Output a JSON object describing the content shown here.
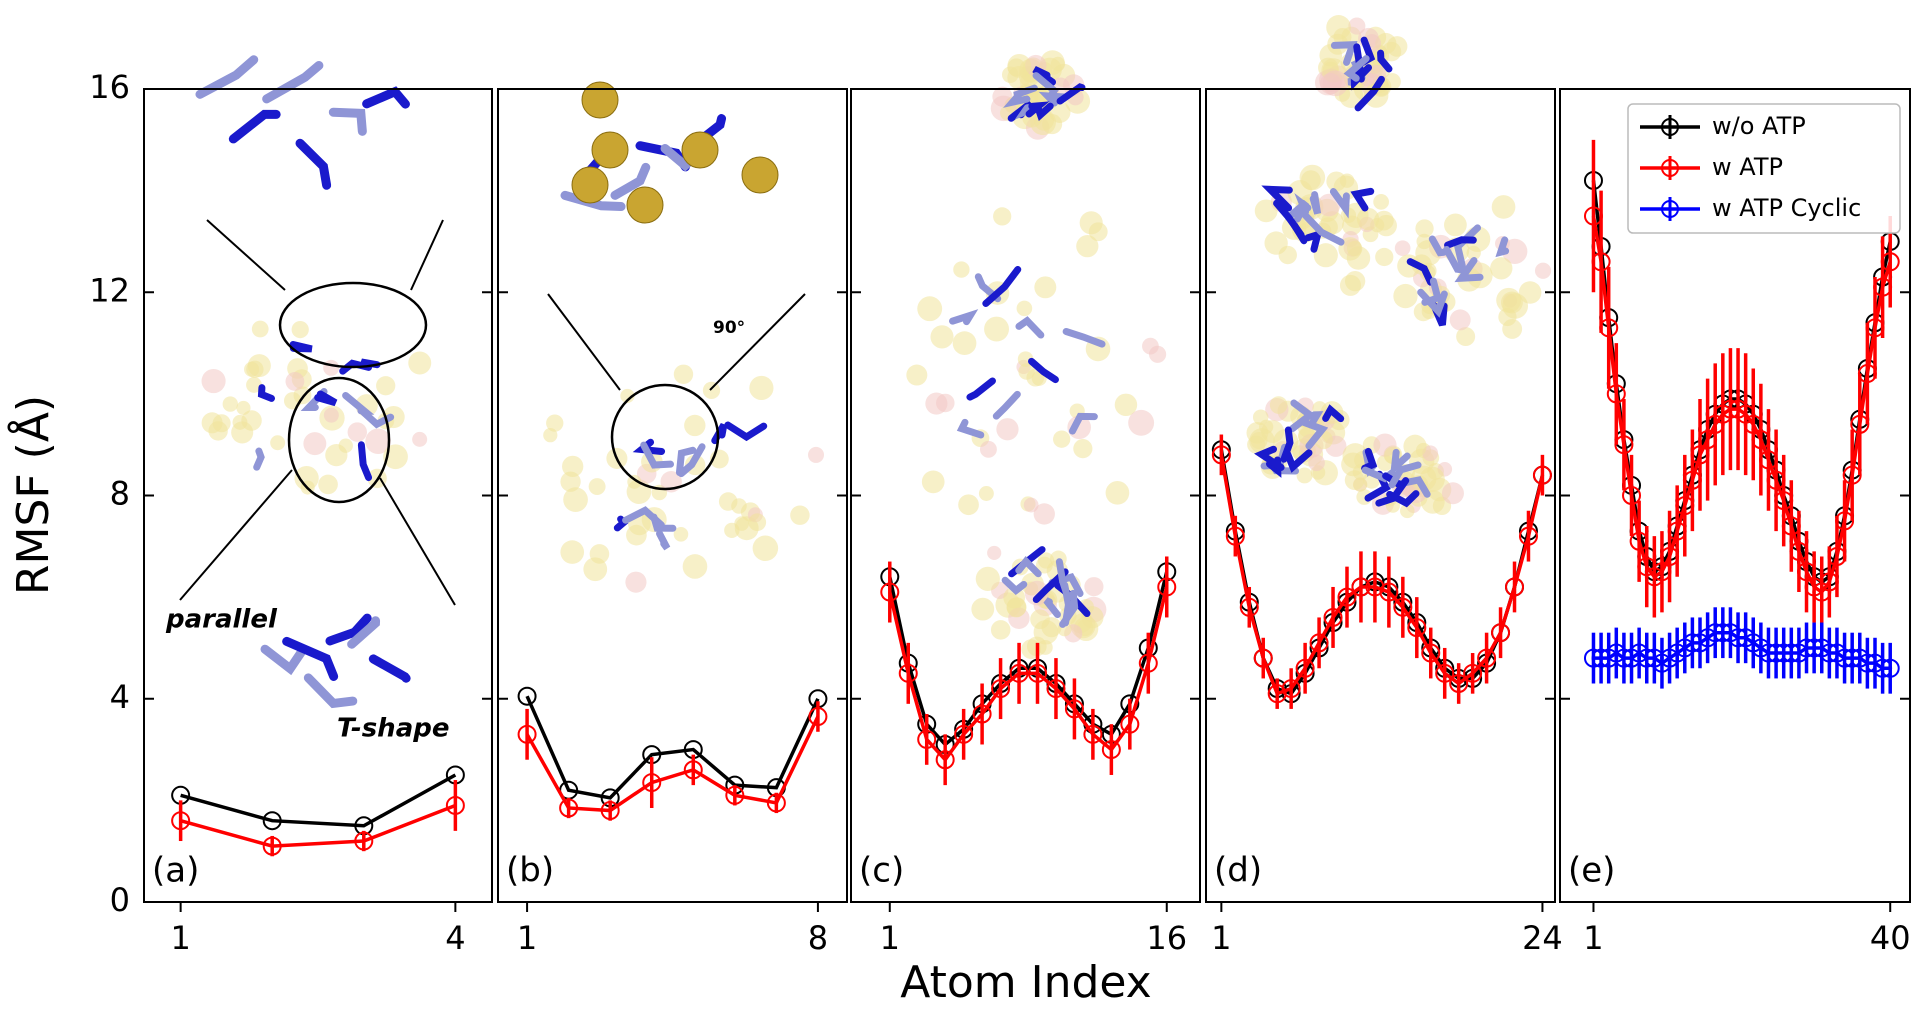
{
  "ylabel": "RMSF (Å)",
  "xlabel": "Atom Index",
  "chart_data": [
    {
      "type": "line",
      "label": "(a)",
      "xlim": [
        0.6,
        4.4
      ],
      "xticks": [
        1,
        4
      ],
      "ylim": [
        0,
        16
      ],
      "yticks": [
        0,
        4,
        8,
        12,
        16
      ],
      "annotations": [
        "parallel",
        "T-shape"
      ],
      "series": [
        {
          "color": "#000000",
          "values": [
            2.1,
            1.6,
            1.5,
            2.5
          ]
        },
        {
          "color": "#ff0000",
          "values": [
            1.6,
            1.1,
            1.2,
            1.9
          ],
          "errors": [
            0.4,
            0.2,
            0.2,
            0.5
          ]
        }
      ]
    },
    {
      "type": "line",
      "label": "(b)",
      "xlim": [
        0.3,
        8.7
      ],
      "xticks": [
        1,
        8
      ],
      "ylim": [
        0,
        16
      ],
      "yticks": [
        0,
        4,
        8,
        12,
        16
      ],
      "annotations": [
        "90°"
      ],
      "series": [
        {
          "color": "#000000",
          "values": [
            4.05,
            2.2,
            2.05,
            2.9,
            3.0,
            2.3,
            2.25,
            4.0
          ]
        },
        {
          "color": "#ff0000",
          "values": [
            3.3,
            1.85,
            1.8,
            2.35,
            2.6,
            2.1,
            1.95,
            3.65
          ],
          "errors": [
            0.5,
            0.2,
            0.2,
            0.5,
            0.3,
            0.2,
            0.2,
            0.3
          ]
        }
      ]
    },
    {
      "type": "line",
      "label": "(c)",
      "xlim": [
        -1.1,
        17.8
      ],
      "xticks": [
        1,
        16
      ],
      "ylim": [
        0,
        16
      ],
      "yticks": [
        0,
        4,
        8,
        12,
        16
      ],
      "series": [
        {
          "color": "#000000",
          "values": [
            6.4,
            4.7,
            3.5,
            3.1,
            3.4,
            3.9,
            4.3,
            4.6,
            4.6,
            4.3,
            3.9,
            3.5,
            3.3,
            3.9,
            5.0,
            6.5
          ]
        },
        {
          "color": "#ff0000",
          "values": [
            6.1,
            4.5,
            3.2,
            2.8,
            3.3,
            3.7,
            4.2,
            4.5,
            4.5,
            4.2,
            3.8,
            3.3,
            3.0,
            3.5,
            4.7,
            6.2
          ],
          "errors": [
            0.6,
            0.6,
            0.5,
            0.5,
            0.5,
            0.6,
            0.6,
            0.6,
            0.6,
            0.6,
            0.6,
            0.5,
            0.5,
            0.5,
            0.6,
            0.6
          ]
        }
      ]
    },
    {
      "type": "line",
      "label": "(d)",
      "xlim": [
        -0.1,
        24.9
      ],
      "xticks": [
        1,
        24
      ],
      "ylim": [
        0,
        16
      ],
      "yticks": [
        0,
        4,
        8,
        12,
        16
      ],
      "series": [
        {
          "color": "#000000",
          "values": [
            8.9,
            7.3,
            5.9,
            4.8,
            4.2,
            4.1,
            4.5,
            5.0,
            5.5,
            5.9,
            6.2,
            6.3,
            6.2,
            5.9,
            5.5,
            5.0,
            4.6,
            4.4,
            4.4,
            4.7,
            5.3,
            6.2,
            7.3,
            8.4
          ]
        },
        {
          "color": "#ff0000",
          "values": [
            8.8,
            7.2,
            5.8,
            4.8,
            4.1,
            4.2,
            4.6,
            5.1,
            5.6,
            6.0,
            6.2,
            6.2,
            6.1,
            5.8,
            5.4,
            4.9,
            4.5,
            4.3,
            4.5,
            4.8,
            5.3,
            6.2,
            7.2,
            8.4
          ],
          "errors": [
            0.4,
            0.4,
            0.4,
            0.4,
            0.3,
            0.4,
            0.5,
            0.5,
            0.6,
            0.6,
            0.7,
            0.7,
            0.7,
            0.6,
            0.6,
            0.5,
            0.5,
            0.4,
            0.4,
            0.5,
            0.5,
            0.5,
            0.5,
            0.4
          ]
        }
      ]
    },
    {
      "type": "line",
      "label": "(e)",
      "xlim": [
        -3.4,
        42.6
      ],
      "xticks": [
        1,
        40
      ],
      "ylim": [
        0,
        16
      ],
      "yticks": [
        0,
        4,
        8,
        12,
        16
      ],
      "series": [
        {
          "name": "w/o ATP",
          "color": "#000000",
          "values": [
            14.2,
            12.9,
            11.5,
            10.2,
            9.1,
            8.2,
            7.3,
            6.8,
            6.5,
            6.6,
            6.9,
            7.4,
            7.9,
            8.4,
            8.9,
            9.3,
            9.6,
            9.8,
            9.9,
            9.9,
            9.8,
            9.6,
            9.3,
            8.9,
            8.5,
            8.0,
            7.6,
            7.1,
            6.7,
            6.4,
            6.3,
            6.4,
            6.9,
            7.6,
            8.5,
            9.5,
            10.5,
            11.4,
            12.3,
            13.0
          ]
        },
        {
          "name": "w ATP",
          "color": "#ff0000",
          "values": [
            13.5,
            12.6,
            11.3,
            10.0,
            9.0,
            8.0,
            7.1,
            6.6,
            6.4,
            6.5,
            6.8,
            7.3,
            7.8,
            8.3,
            8.8,
            9.1,
            9.4,
            9.6,
            9.7,
            9.7,
            9.6,
            9.4,
            9.1,
            8.7,
            8.3,
            7.9,
            7.4,
            6.9,
            6.5,
            6.2,
            6.1,
            6.3,
            6.8,
            7.5,
            8.4,
            9.4,
            10.4,
            11.3,
            12.1,
            12.6
          ],
          "errors": [
            1.5,
            1.4,
            1.2,
            1.0,
            0.9,
            0.8,
            0.8,
            0.8,
            0.8,
            0.8,
            0.9,
            0.9,
            1.0,
            1.0,
            1.1,
            1.2,
            1.2,
            1.2,
            1.2,
            1.2,
            1.2,
            1.1,
            1.1,
            1.0,
            1.0,
            0.9,
            0.9,
            0.8,
            0.8,
            0.7,
            0.7,
            0.7,
            0.8,
            0.8,
            0.9,
            1.0,
            1.0,
            1.0,
            1.0,
            0.9
          ]
        },
        {
          "name": "w ATP Cyclic",
          "color": "#0000ff",
          "values": [
            4.8,
            4.8,
            4.8,
            4.9,
            4.8,
            4.8,
            4.9,
            4.8,
            4.8,
            4.7,
            4.8,
            4.9,
            5.0,
            5.1,
            5.1,
            5.2,
            5.3,
            5.3,
            5.3,
            5.2,
            5.2,
            5.1,
            5.0,
            4.9,
            4.9,
            4.9,
            4.9,
            4.9,
            5.0,
            5.0,
            5.0,
            4.9,
            4.9,
            4.8,
            4.8,
            4.8,
            4.7,
            4.7,
            4.6,
            4.6
          ],
          "errors": [
            0.5,
            0.5,
            0.5,
            0.5,
            0.5,
            0.5,
            0.5,
            0.5,
            0.5,
            0.5,
            0.5,
            0.5,
            0.5,
            0.5,
            0.5,
            0.5,
            0.5,
            0.5,
            0.5,
            0.5,
            0.5,
            0.5,
            0.5,
            0.5,
            0.5,
            0.5,
            0.5,
            0.5,
            0.5,
            0.5,
            0.5,
            0.5,
            0.5,
            0.5,
            0.5,
            0.5,
            0.5,
            0.5,
            0.5,
            0.5
          ]
        }
      ]
    }
  ]
}
